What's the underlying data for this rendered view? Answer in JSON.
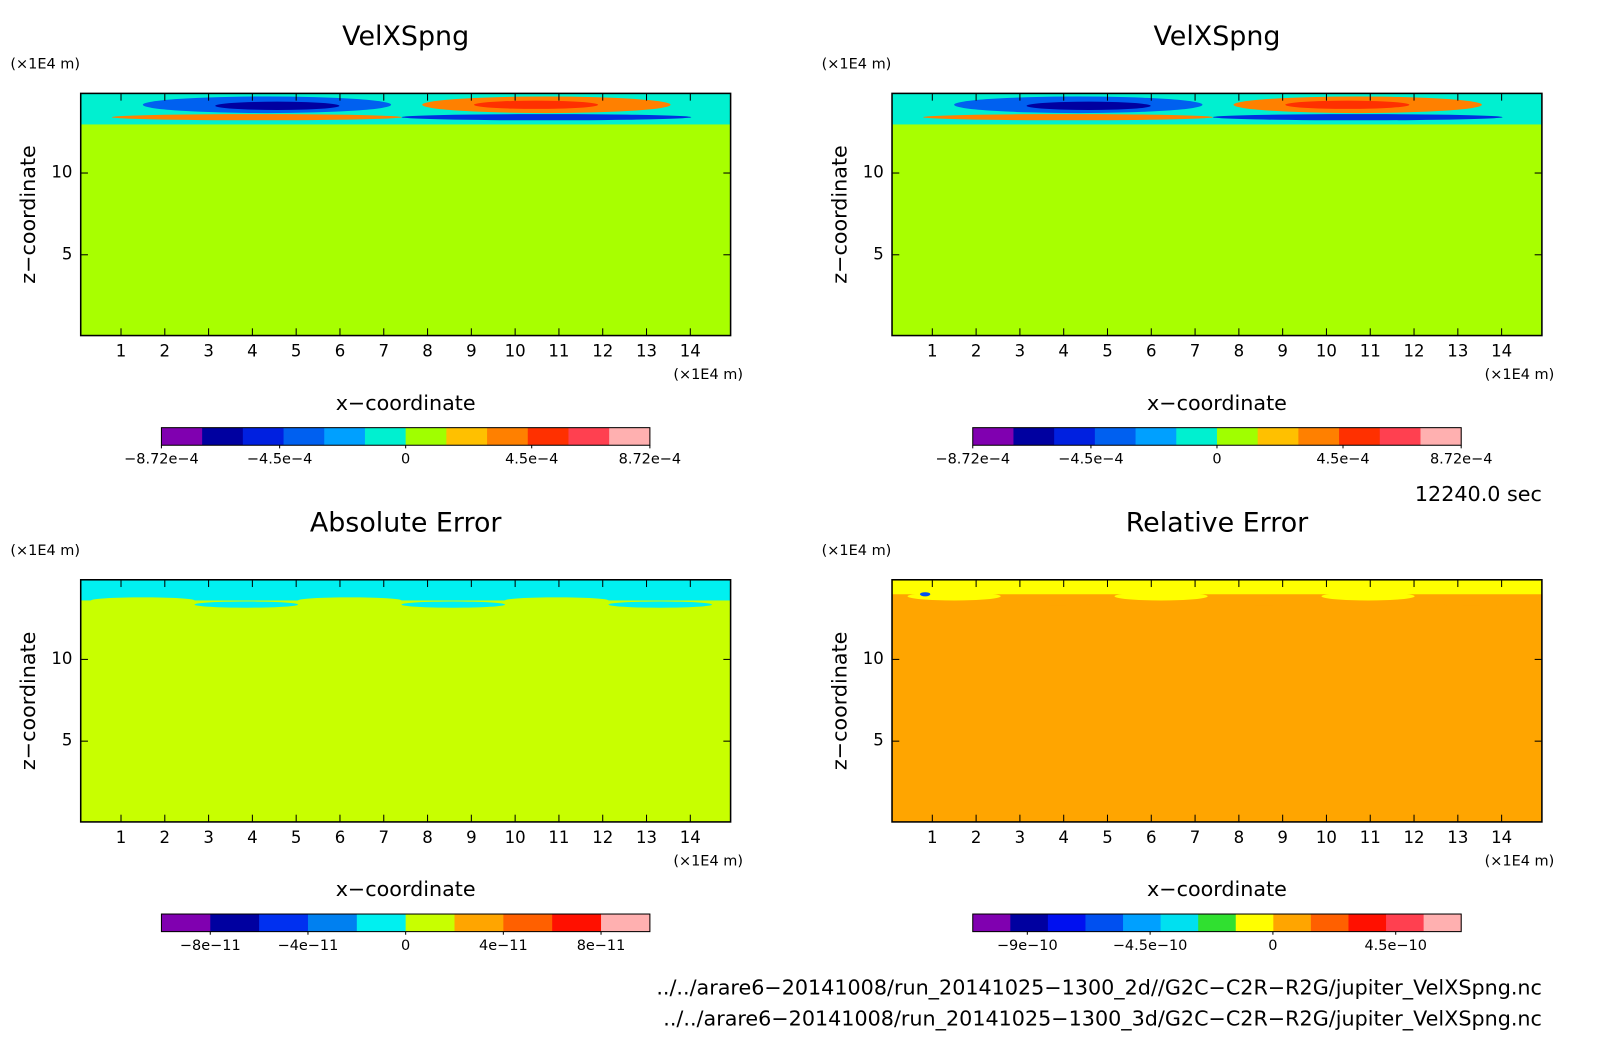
{
  "chart_data": [
    {
      "type": "contour",
      "title": "VelXSpng",
      "x_label": "x−coordinate",
      "y_label": "z−coordinate",
      "x_unit": "(×1E4 m)",
      "y_unit": "(×1E4 m)",
      "xlim": [
        0.08,
        14.92
      ],
      "ylim": [
        0.06,
        14.87
      ],
      "xticks": [
        1,
        2,
        3,
        4,
        5,
        6,
        7,
        8,
        9,
        10,
        11,
        12,
        13,
        14
      ],
      "yticks": [
        5,
        10
      ],
      "colorbar": {
        "lim": [
          -0.000872,
          0.000872
        ],
        "colors": [
          "#8000b0",
          "#0000a0",
          "#0020e0",
          "#0060f0",
          "#00a0ff",
          "#00f0d0",
          "#a0ff00",
          "#ffc000",
          "#ff8000",
          "#ff3000",
          "#ff4050",
          "#ffb0b0"
        ],
        "ticks": [
          {
            "value": -0.000872,
            "label": "−8.72e−4"
          },
          {
            "value": -0.00045,
            "label": "−4.5e−4"
          },
          0,
          {
            "value": 0.00045,
            "label": "4.5e−4"
          },
          {
            "value": 0.000872,
            "label": "8.72e−4"
          }
        ]
      }
    },
    {
      "type": "contour",
      "title": "VelXSpng",
      "x_label": "x−coordinate",
      "y_label": "z−coordinate",
      "x_unit": "(×1E4 m)",
      "y_unit": "(×1E4 m)",
      "xlim": [
        0.08,
        14.92
      ],
      "ylim": [
        0.06,
        14.87
      ],
      "xticks": [
        1,
        2,
        3,
        4,
        5,
        6,
        7,
        8,
        9,
        10,
        11,
        12,
        13,
        14
      ],
      "yticks": [
        5,
        10
      ],
      "colorbar": {
        "lim": [
          -0.000872,
          0.000872
        ],
        "colors": [
          "#8000b0",
          "#0000a0",
          "#0020e0",
          "#0060f0",
          "#00a0ff",
          "#00f0d0",
          "#a0ff00",
          "#ffc000",
          "#ff8000",
          "#ff3000",
          "#ff4050",
          "#ffb0b0"
        ],
        "ticks": [
          {
            "value": -0.000872,
            "label": "−8.72e−4"
          },
          {
            "value": -0.00045,
            "label": "−4.5e−4"
          },
          0,
          {
            "value": 0.00045,
            "label": "4.5e−4"
          },
          {
            "value": 0.000872,
            "label": "8.72e−4"
          }
        ]
      }
    },
    {
      "type": "contour",
      "title": "Absolute Error",
      "x_label": "x−coordinate",
      "y_label": "z−coordinate",
      "x_unit": "(×1E4 m)",
      "y_unit": "(×1E4 m)",
      "xlim": [
        0.08,
        14.92
      ],
      "ylim": [
        0.06,
        14.87
      ],
      "xticks": [
        1,
        2,
        3,
        4,
        5,
        6,
        7,
        8,
        9,
        10,
        11,
        12,
        13,
        14
      ],
      "yticks": [
        5,
        10
      ],
      "colorbar": {
        "lim": [
          -1e-10,
          1e-10
        ],
        "colors": [
          "#8000b0",
          "#0000a0",
          "#0030f0",
          "#0080f0",
          "#00f0f0",
          "#c8ff00",
          "#ffa500",
          "#ff6000",
          "#ff1000",
          "#ffb0b0"
        ],
        "ticks": [
          {
            "value": -8e-11,
            "label": "−8e−11"
          },
          {
            "value": -4e-11,
            "label": "−4e−11"
          },
          0,
          {
            "value": 4e-11,
            "label": "4e−11"
          },
          {
            "value": 8e-11,
            "label": "8e−11"
          }
        ]
      }
    },
    {
      "type": "contour",
      "title": "Relative Error",
      "x_label": "x−coordinate",
      "y_label": "z−coordinate",
      "x_unit": "(×1E4 m)",
      "y_unit": "(×1E4 m)",
      "xlim": [
        0.08,
        14.92
      ],
      "ylim": [
        0.06,
        14.87
      ],
      "xticks": [
        1,
        2,
        3,
        4,
        5,
        6,
        7,
        8,
        9,
        10,
        11,
        12,
        13,
        14
      ],
      "yticks": [
        5,
        10
      ],
      "colorbar": {
        "lim": [
          -1.1e-09,
          6.9e-10
        ],
        "colors": [
          "#8000b0",
          "#0000a0",
          "#0010f0",
          "#0050f0",
          "#00a0ff",
          "#00e0f0",
          "#30e030",
          "#ffff00",
          "#ffa500",
          "#ff6000",
          "#ff1000",
          "#ff4050",
          "#ffb0b0"
        ],
        "ticks": [
          {
            "value": -9e-10,
            "label": "−9e−10"
          },
          {
            "value": -4.5e-10,
            "label": "−4.5e−10"
          },
          0,
          {
            "value": 4.5e-10,
            "label": "4.5e−10"
          }
        ]
      }
    }
  ],
  "time": "12240.0 sec",
  "files": [
    "../../arare6−20141008/run_20141025−1300_2d//G2C−C2R−R2G/jupiter_VelXSpng.nc",
    "../../arare6−20141008/run_20141025−1300_3d/G2C−C2R−R2G/jupiter_VelXSpng.nc"
  ]
}
